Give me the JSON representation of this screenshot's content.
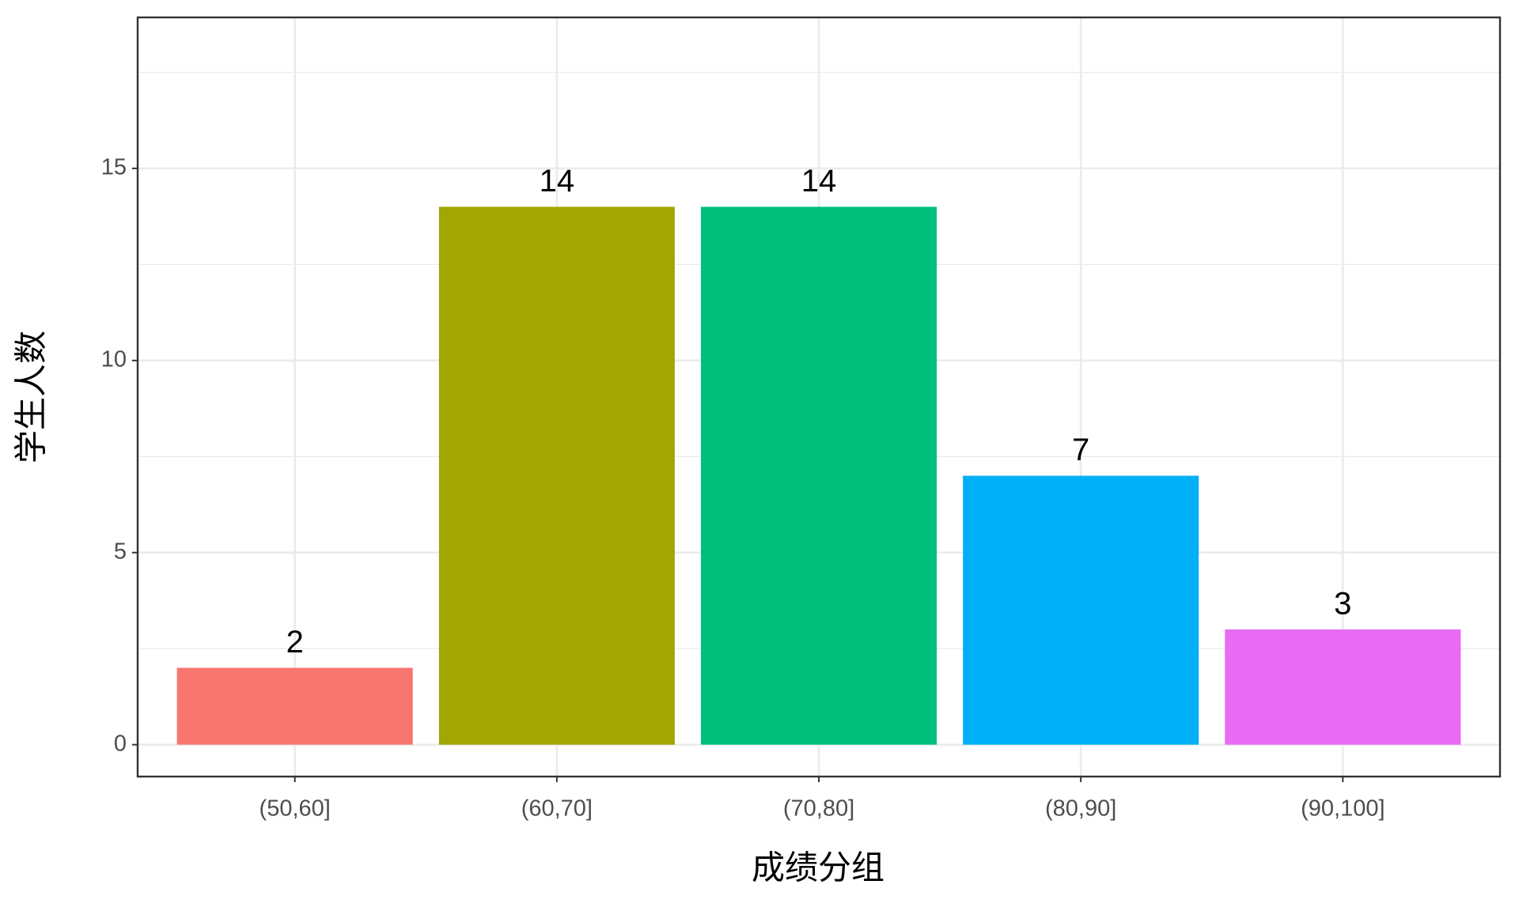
{
  "chart_data": {
    "type": "bar",
    "x_label": "成绩分组",
    "y_label": "学生人数",
    "categories": [
      "(50,60]",
      "(60,70]",
      "(70,80]",
      "(80,90]",
      "(90,100]"
    ],
    "values": [
      2,
      14,
      14,
      7,
      3
    ],
    "colors": [
      "#F8766D",
      "#A3A500",
      "#00BF7D",
      "#00B0F6",
      "#E76BF3"
    ],
    "ylim": [
      -0.83,
      18.93
    ],
    "yticks": [
      0,
      5,
      10,
      15
    ],
    "minor_yticks": [
      2.5,
      7.5,
      12.5,
      17.5
    ],
    "grid": true
  }
}
